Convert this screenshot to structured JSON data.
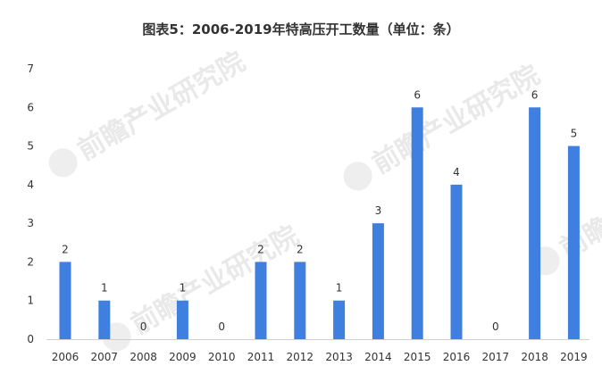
{
  "watermark": {
    "text": "前瞻产业研究院"
  },
  "chart_data": {
    "type": "bar",
    "title": "图表5：2006-2019年特高压开工数量（单位：条）",
    "categories": [
      "2006",
      "2007",
      "2008",
      "2009",
      "2010",
      "2011",
      "2012",
      "2013",
      "2014",
      "2015",
      "2016",
      "2017",
      "2018",
      "2019"
    ],
    "values": [
      2,
      1,
      0,
      1,
      0,
      2,
      2,
      1,
      3,
      6,
      4,
      0,
      6,
      5
    ],
    "data_labels": [
      "2",
      "1",
      "0",
      "1",
      "0",
      "2",
      "2",
      "1",
      "3",
      "6",
      "4",
      "0",
      "6",
      "5"
    ],
    "ylim": [
      0,
      7
    ],
    "yticks": [
      0,
      1,
      2,
      3,
      4,
      5,
      6,
      7
    ],
    "grid": false,
    "bar_color": "#3f7fdf",
    "axis_color": "#d0d0d0",
    "xlabel": "",
    "ylabel": ""
  }
}
